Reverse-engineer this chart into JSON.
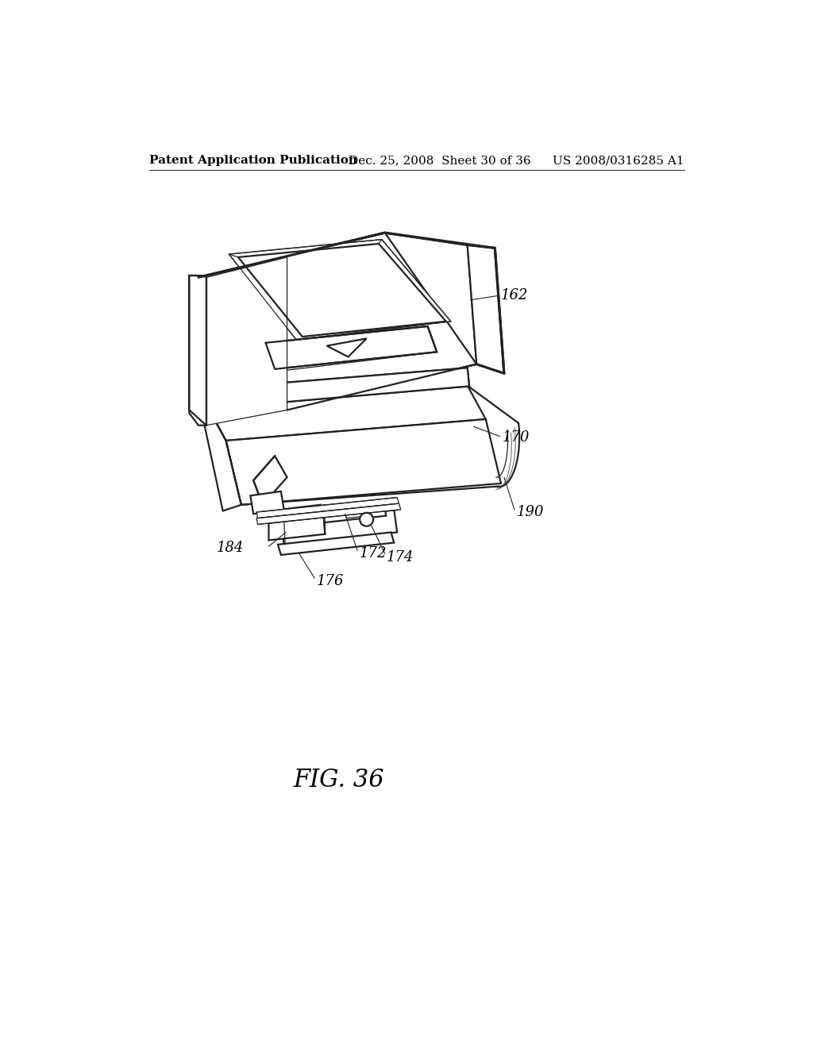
{
  "bg_color": "#ffffff",
  "line_color": "#222222",
  "header_left": "Patent Application Publication",
  "header_mid": "Dec. 25, 2008  Sheet 30 of 36",
  "header_right": "US 2008/0316285 A1",
  "fig_label": "FIG. 36",
  "label_fontsize": 13,
  "fig_label_fontsize": 22,
  "header_fontsize": 11,
  "lw_main": 1.6,
  "lw_thin": 0.9,
  "lw_thick": 2.2
}
